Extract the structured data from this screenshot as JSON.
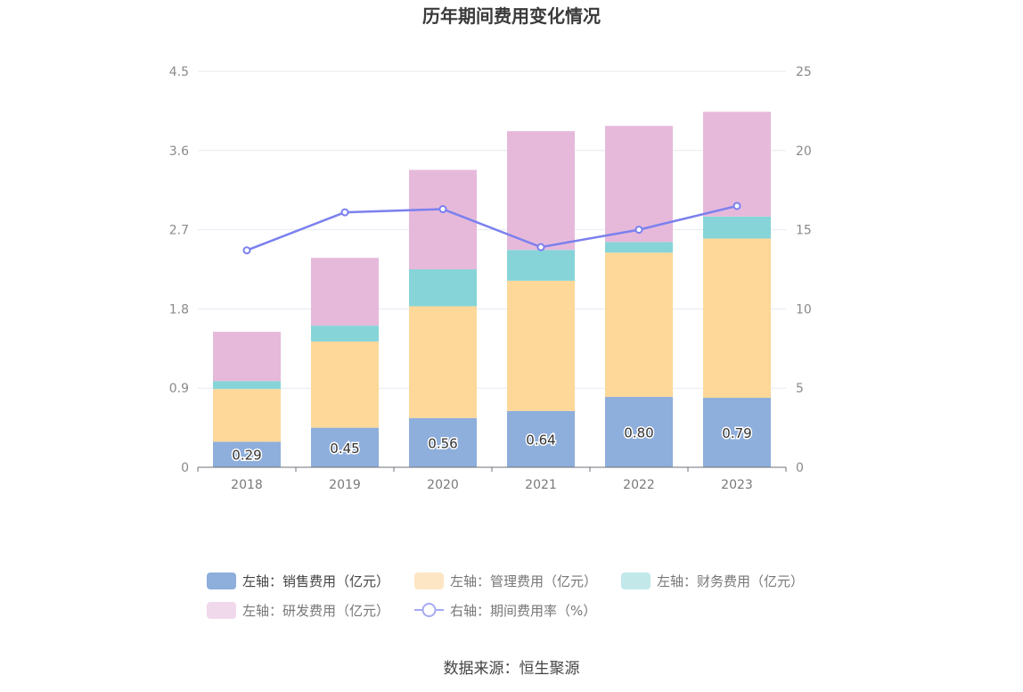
{
  "chart_data": {
    "type": "bar",
    "stacked": true,
    "title": "历年期间费用变化情况",
    "categories": [
      "2018",
      "2019",
      "2020",
      "2021",
      "2022",
      "2023"
    ],
    "y_left": {
      "ylim": [
        0,
        4.5
      ],
      "ticks": [
        "0",
        "0.9",
        "1.8",
        "2.7",
        "3.6",
        "4.5"
      ]
    },
    "y_right": {
      "ylim": [
        0,
        25
      ],
      "ticks": [
        "0",
        "5",
        "10",
        "15",
        "20",
        "25"
      ]
    },
    "series": [
      {
        "name": "左轴：销售费用（亿元）",
        "type": "bar",
        "axis": "left",
        "color": "#8eaedc",
        "values": [
          0.29,
          0.45,
          0.56,
          0.64,
          0.8,
          0.79
        ],
        "labels": [
          "0.29",
          "0.45",
          "0.56",
          "0.64",
          "0.80",
          "0.79"
        ]
      },
      {
        "name": "左轴：管理费用（亿元）",
        "type": "bar",
        "axis": "left",
        "color": "#fdd899",
        "values": [
          0.6,
          0.98,
          1.27,
          1.48,
          1.64,
          1.81
        ]
      },
      {
        "name": "左轴：财务费用（亿元）",
        "type": "bar",
        "axis": "left",
        "color": "#86d4d8",
        "values": [
          0.09,
          0.18,
          0.42,
          0.35,
          0.12,
          0.25
        ]
      },
      {
        "name": "左轴：研发费用（亿元）",
        "type": "bar",
        "axis": "left",
        "color": "#e6b9db",
        "values": [
          0.56,
          0.77,
          1.13,
          1.35,
          1.32,
          1.19
        ]
      },
      {
        "name": "右轴：期间费用率（%）",
        "type": "line",
        "axis": "right",
        "color": "#7b80ee",
        "values": [
          13.7,
          16.1,
          16.3,
          13.9,
          15.0,
          16.5
        ]
      }
    ],
    "legend_position": "bottom",
    "grid": true
  },
  "legend_colors": {
    "销售": "#8eaedc",
    "管理": "#fde6c4",
    "财务": "#c2e8ea",
    "研发": "#f1d9ec",
    "rate": "#a6aaf3"
  },
  "source": "数据来源：恒生聚源"
}
